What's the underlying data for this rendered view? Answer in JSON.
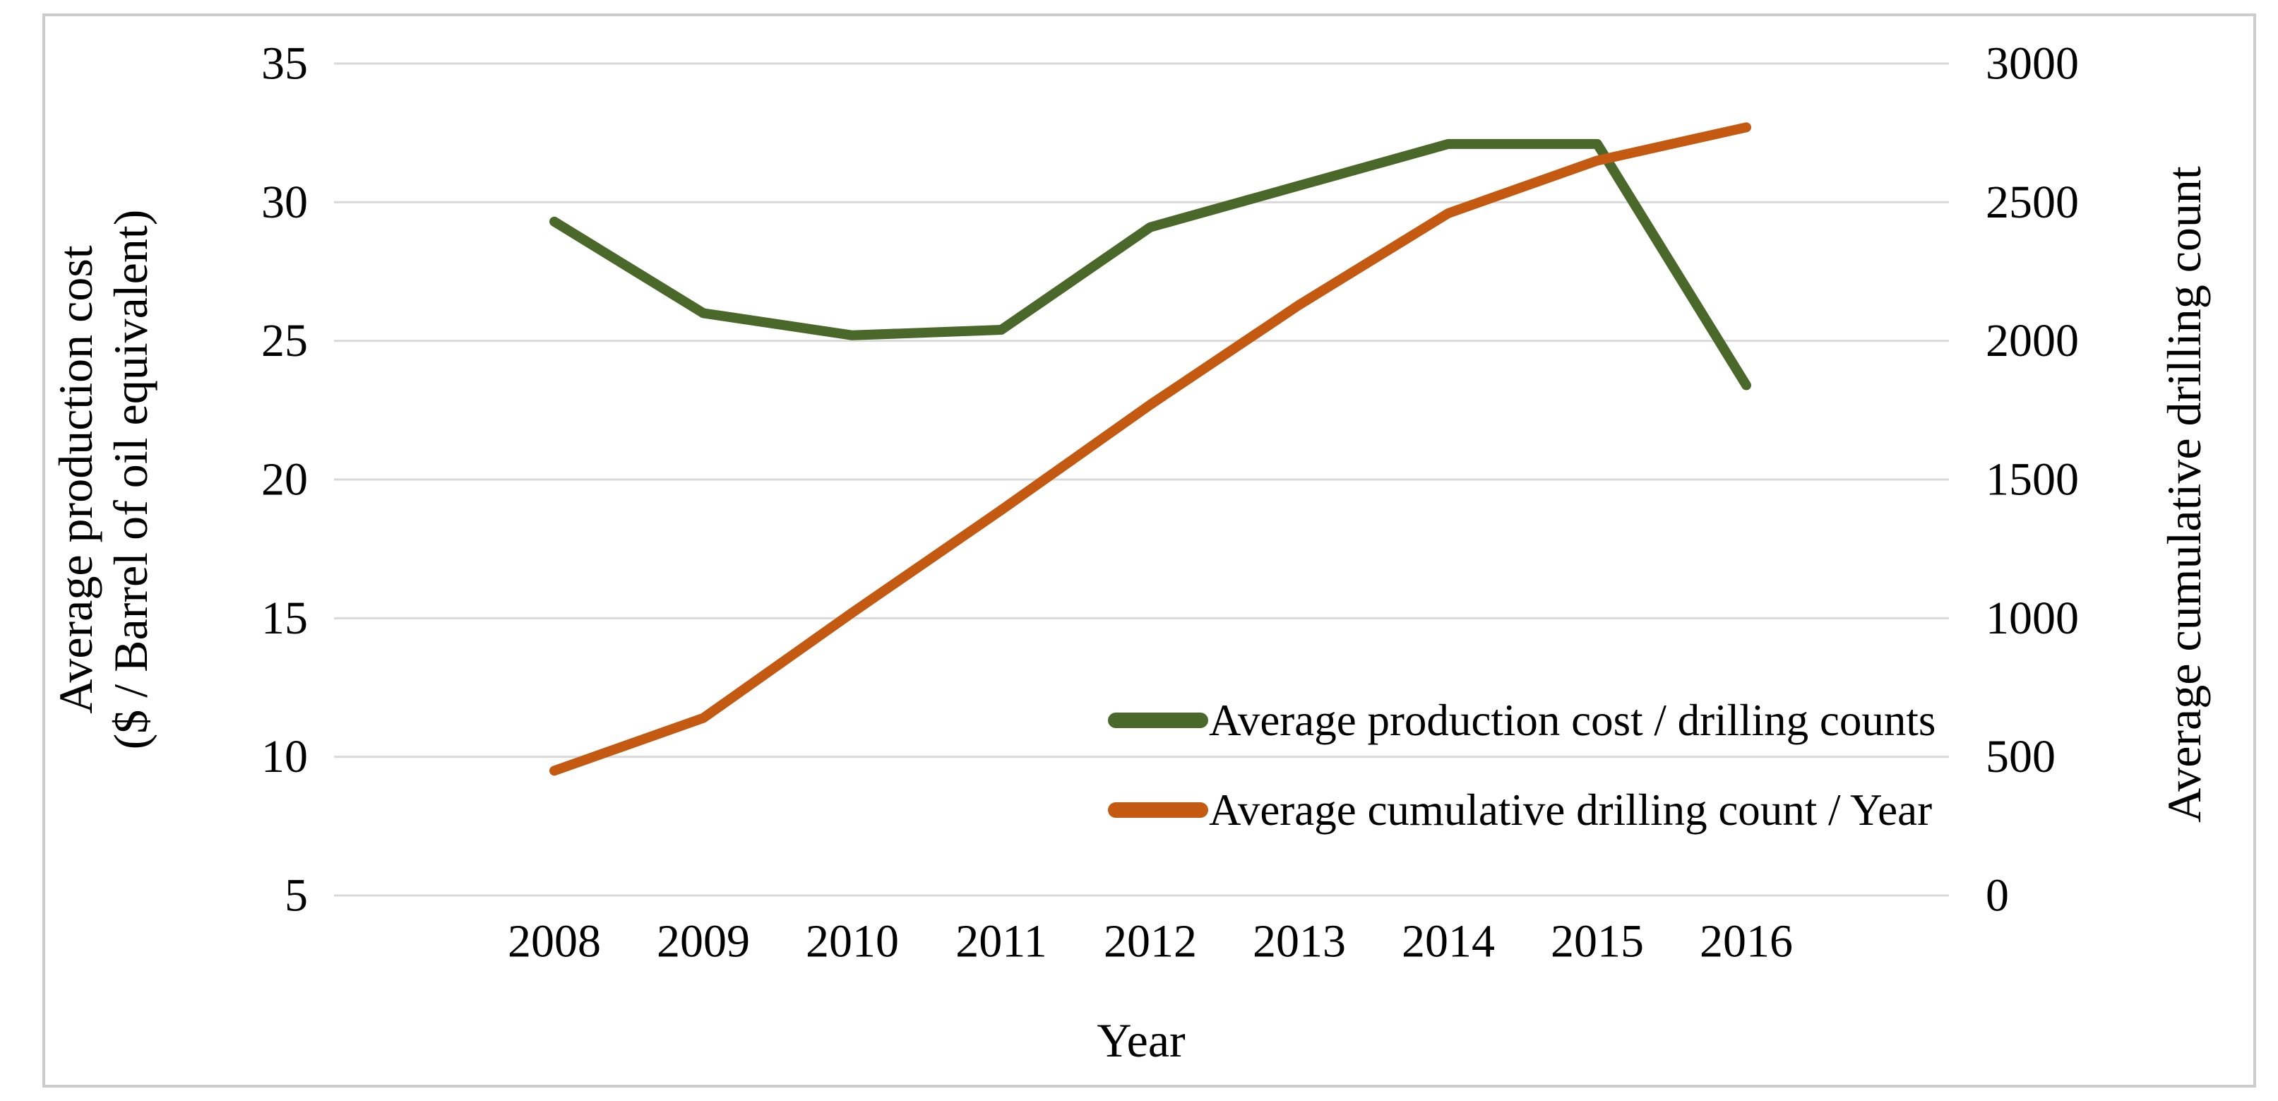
{
  "chart_data": {
    "type": "line",
    "title": "",
    "x": [
      2008,
      2009,
      2010,
      2011,
      2012,
      2013,
      2014,
      2015,
      2016
    ],
    "xlabel": "Year",
    "grid": true,
    "grid_color": "#d9d9d9",
    "background": "#ffffff",
    "border_color": "#cccccc",
    "text_color": "#000000",
    "left_axis": {
      "title_line1": "Average production cost",
      "title_line2": "($ / Barrel of oil equivalent)",
      "min": 5,
      "max": 35,
      "step": 5,
      "tick_labels": [
        "35",
        "30",
        "25",
        "20",
        "15",
        "10",
        "5"
      ]
    },
    "right_axis": {
      "title": "Average cumulative drilling count",
      "min": 0,
      "max": 3000,
      "step": 500,
      "tick_labels": [
        "3000",
        "2500",
        "2000",
        "1500",
        "1000",
        "500",
        "0"
      ]
    },
    "legend_position": "inside-bottom",
    "series": [
      {
        "name": "Average production cost / drilling counts",
        "axis": "left",
        "color": "#4a682a",
        "values": [
          29.3,
          26.0,
          25.2,
          25.4,
          29.1,
          30.6,
          32.1,
          32.1,
          23.4
        ]
      },
      {
        "name": "Average cumulative drilling count / Year",
        "axis": "right",
        "color": "#c45911",
        "values": [
          450,
          640,
          1020,
          1390,
          1770,
          2130,
          2460,
          2650,
          2770
        ]
      }
    ]
  }
}
